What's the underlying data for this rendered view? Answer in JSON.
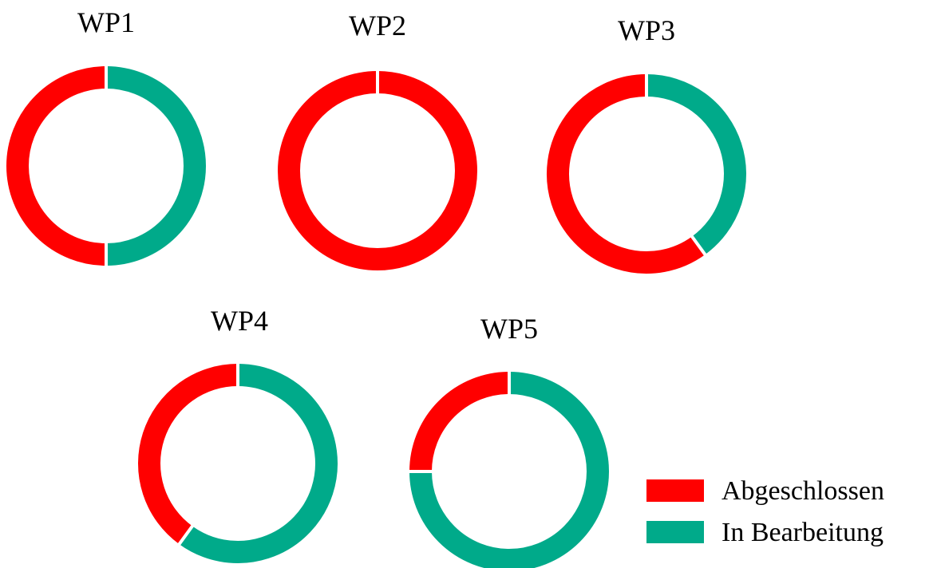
{
  "colors": {
    "done": "#ff0000",
    "in_progress": "#00aa8a"
  },
  "legend": [
    {
      "label": "Abgeschlossen",
      "color": "#ff0000"
    },
    {
      "label": "In Bearbeitung",
      "color": "#00aa8a"
    }
  ],
  "chart_data": [
    {
      "type": "pie",
      "title": "WP1",
      "categories": [
        "Abgeschlossen",
        "In Bearbeitung"
      ],
      "values": [
        50,
        50
      ]
    },
    {
      "type": "pie",
      "title": "WP2",
      "categories": [
        "Abgeschlossen",
        "In Bearbeitung"
      ],
      "values": [
        100,
        0
      ]
    },
    {
      "type": "pie",
      "title": "WP3",
      "categories": [
        "Abgeschlossen",
        "In Bearbeitung"
      ],
      "values": [
        60,
        40
      ]
    },
    {
      "type": "pie",
      "title": "WP4",
      "categories": [
        "Abgeschlossen",
        "In Bearbeitung"
      ],
      "values": [
        40,
        60
      ]
    },
    {
      "type": "pie",
      "title": "WP5",
      "categories": [
        "Abgeschlossen",
        "In Bearbeitung"
      ],
      "values": [
        25,
        75
      ]
    }
  ]
}
